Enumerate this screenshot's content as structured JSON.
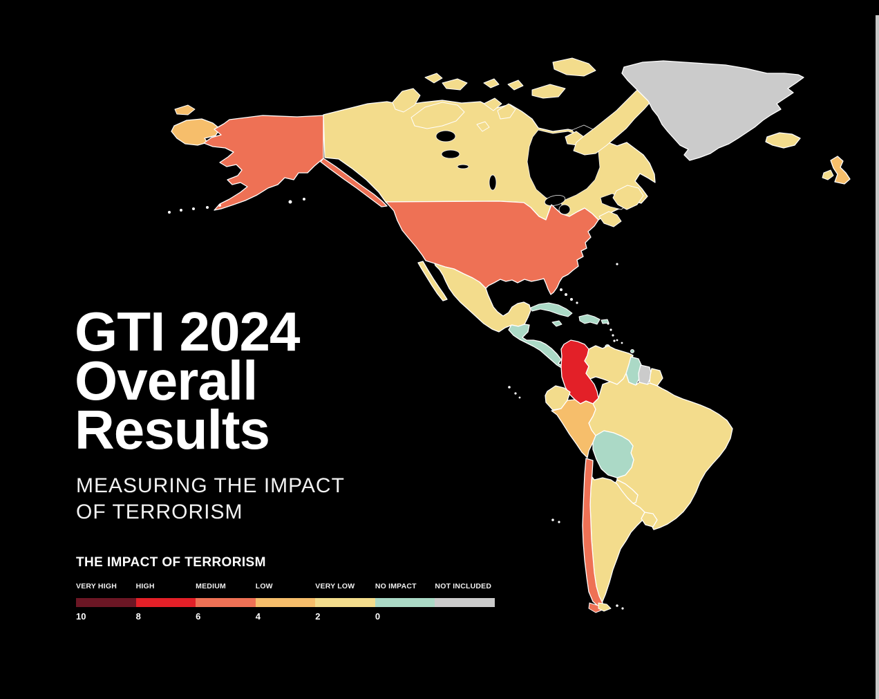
{
  "page": {
    "background": "#000000",
    "border_color": "#FFFFFF"
  },
  "title": {
    "line1": "GTI 2024",
    "line2": "Overall",
    "line3": "Results"
  },
  "subtitle": {
    "line1": "MEASURING THE IMPACT",
    "line2": "OF TERRORISM"
  },
  "legend": {
    "title": "THE IMPACT OF TERRORISM",
    "categories": [
      {
        "id": "very_high",
        "label": "VERY HIGH",
        "color": "#6B1624",
        "tick": "10"
      },
      {
        "id": "high",
        "label": "HIGH",
        "color": "#E32028",
        "tick": "8"
      },
      {
        "id": "medium",
        "label": "MEDIUM",
        "color": "#EE7155",
        "tick": "6"
      },
      {
        "id": "low",
        "label": "LOW",
        "color": "#F6BE6B",
        "tick": "4"
      },
      {
        "id": "very_low",
        "label": "VERY LOW",
        "color": "#F3DC8C",
        "tick": "2"
      },
      {
        "id": "no_impact",
        "label": "NO IMPACT",
        "color": "#ABD9C6",
        "tick": "0"
      },
      {
        "id": "not_included",
        "label": "NOT INCLUDED",
        "color": "#CBCBCB",
        "tick": ""
      }
    ]
  },
  "map": {
    "region": "Americas",
    "ocean_color": "#000000",
    "border_color": "#FFFFFF",
    "countries": [
      {
        "id": "united-states",
        "name": "United States",
        "level": "medium"
      },
      {
        "id": "canada",
        "name": "Canada",
        "level": "very_low"
      },
      {
        "id": "greenland",
        "name": "Greenland",
        "level": "not_included"
      },
      {
        "id": "iceland",
        "name": "Iceland",
        "level": "very_low"
      },
      {
        "id": "united-kingdom",
        "name": "United Kingdom",
        "level": "low"
      },
      {
        "id": "ireland",
        "name": "Ireland",
        "level": "very_low"
      },
      {
        "id": "russia",
        "name": "Russia (Chukotka)",
        "level": "low"
      },
      {
        "id": "mexico",
        "name": "Mexico",
        "level": "very_low"
      },
      {
        "id": "central-america",
        "name": "Central America (Guatemala to Panama)",
        "level": "no_impact"
      },
      {
        "id": "cuba",
        "name": "Cuba",
        "level": "no_impact"
      },
      {
        "id": "jamaica",
        "name": "Jamaica",
        "level": "no_impact"
      },
      {
        "id": "hispaniola",
        "name": "Haiti / Dominican Republic",
        "level": "no_impact"
      },
      {
        "id": "puerto-rico",
        "name": "Puerto Rico",
        "level": "no_impact"
      },
      {
        "id": "caribbean",
        "name": "Caribbean islands",
        "level": "no_impact"
      },
      {
        "id": "colombia",
        "name": "Colombia",
        "level": "high"
      },
      {
        "id": "venezuela",
        "name": "Venezuela",
        "level": "very_low"
      },
      {
        "id": "guyana",
        "name": "Guyana",
        "level": "no_impact"
      },
      {
        "id": "suriname",
        "name": "Suriname",
        "level": "not_included"
      },
      {
        "id": "french-guiana",
        "name": "French Guiana",
        "level": "very_low"
      },
      {
        "id": "ecuador",
        "name": "Ecuador",
        "level": "very_low"
      },
      {
        "id": "peru",
        "name": "Peru",
        "level": "low"
      },
      {
        "id": "brazil",
        "name": "Brazil",
        "level": "very_low"
      },
      {
        "id": "bolivia",
        "name": "Bolivia",
        "level": "no_impact"
      },
      {
        "id": "paraguay",
        "name": "Paraguay",
        "level": "very_low"
      },
      {
        "id": "chile",
        "name": "Chile",
        "level": "medium"
      },
      {
        "id": "argentina",
        "name": "Argentina",
        "level": "very_low"
      },
      {
        "id": "uruguay",
        "name": "Uruguay",
        "level": "very_low"
      }
    ]
  }
}
